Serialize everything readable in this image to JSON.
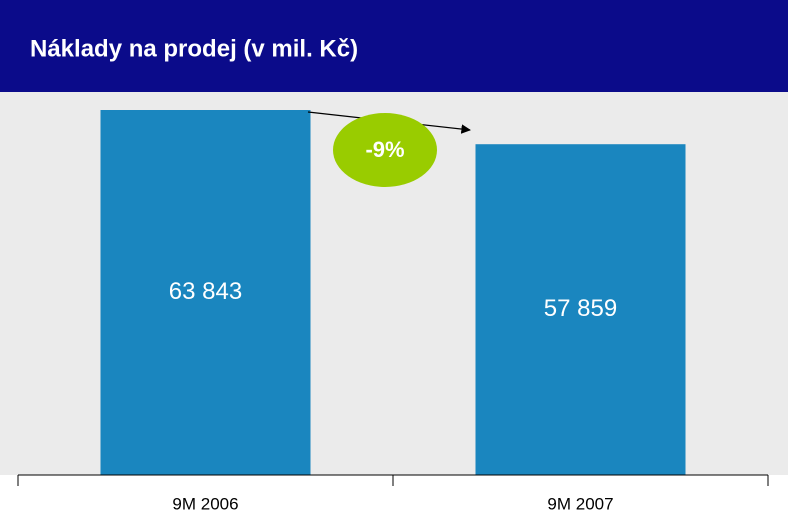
{
  "chart_data": {
    "type": "bar",
    "title": "Náklady na prodej (v mil. Kč)",
    "categories": [
      "9M 2006",
      "9M 2007"
    ],
    "values": [
      63843,
      57859
    ],
    "value_labels": [
      "63 843",
      "57 859"
    ],
    "color": "#1a86bf",
    "annotation": "-9%"
  }
}
